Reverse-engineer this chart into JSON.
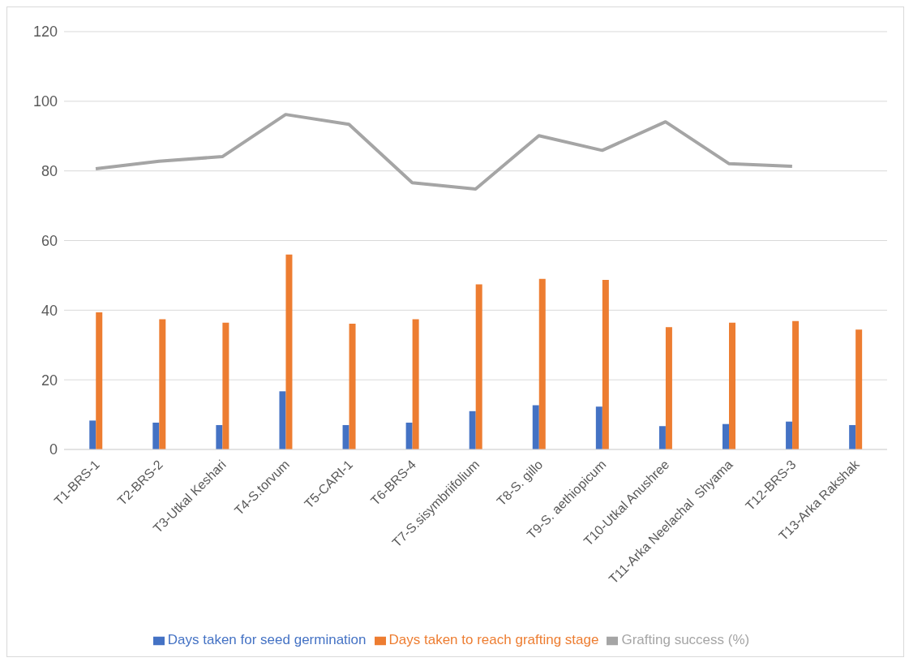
{
  "chart_data": {
    "type": "bar",
    "categories": [
      "T1-BRS-1",
      "T2-BRS-2",
      "T3-Utkal Keshari",
      "T4-S.torvum",
      "T5-CARI-1",
      "T6-BRS-4",
      "T7-S.sisymbriifolium",
      "T8-S. gillo",
      "T9-S. aethiopicum",
      "T10-Utkal Anushree",
      "T11-Arka Neelachal  Shyama",
      "T12-BRS-3",
      "T13-Arka Rakshak"
    ],
    "series": [
      {
        "name": "Days taken for seed germination",
        "color": "#4472c4",
        "values": [
          8.3,
          7.7,
          7.0,
          16.7,
          7.0,
          7.7,
          11.0,
          12.7,
          12.3,
          6.7,
          7.3,
          8.0,
          7.0
        ]
      },
      {
        "name": "Days taken to reach grafting stage",
        "color": "#ed7d31",
        "values": [
          39.4,
          37.4,
          36.4,
          56.0,
          36.1,
          37.4,
          47.4,
          49.0,
          48.7,
          35.1,
          36.4,
          36.9,
          34.4
        ]
      },
      {
        "name": "Grafting success (%)",
        "type": "line",
        "color": "#a5a5a5",
        "values": [
          80.6,
          82.8,
          84.1,
          96.2,
          93.4,
          76.6,
          74.8,
          90.1,
          85.9,
          94.1,
          82.1,
          81.3,
          null
        ]
      }
    ],
    "ylim": [
      0,
      120
    ],
    "yticks": [
      0,
      20,
      40,
      60,
      80,
      100,
      120
    ],
    "grid": "y",
    "legend": "bottom",
    "marker": "none",
    "line_style": "solid"
  }
}
